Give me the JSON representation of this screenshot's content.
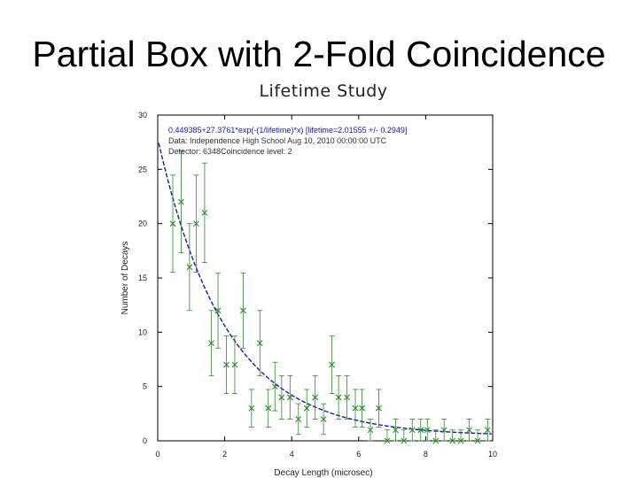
{
  "slide": {
    "title": "Partial Box with 2-Fold Coincidence"
  },
  "chart_data": {
    "type": "scatter",
    "title": "Lifetime Study",
    "xlabel": "Decay Length (microsec)",
    "ylabel": "Number of Decays",
    "xlim": [
      0,
      10
    ],
    "ylim": [
      0,
      30
    ],
    "xticks": [
      0,
      2,
      4,
      6,
      8,
      10
    ],
    "yticks": [
      0,
      5,
      10,
      15,
      20,
      25,
      30
    ],
    "grid": false,
    "annotations": [
      "0.449385+27.3761*exp(-(1/lifetime)*x) [lifetime=2.01555 +/- 0.2949]",
      "Data: Independence High School Aug 10, 2010 00:00:00 UTC",
      "Detector: 6348Coincidence level: 2"
    ],
    "series": [
      {
        "type": "points-with-error-bars",
        "color": "#2e8b2e",
        "points": [
          {
            "x": 0.45,
            "y": 20
          },
          {
            "x": 0.7,
            "y": 22
          },
          {
            "x": 0.95,
            "y": 16
          },
          {
            "x": 1.15,
            "y": 20
          },
          {
            "x": 1.4,
            "y": 21
          },
          {
            "x": 1.6,
            "y": 9
          },
          {
            "x": 1.8,
            "y": 12
          },
          {
            "x": 2.05,
            "y": 7
          },
          {
            "x": 2.3,
            "y": 7
          },
          {
            "x": 2.55,
            "y": 12
          },
          {
            "x": 2.8,
            "y": 3
          },
          {
            "x": 3.05,
            "y": 9
          },
          {
            "x": 3.3,
            "y": 3
          },
          {
            "x": 3.5,
            "y": 5
          },
          {
            "x": 3.7,
            "y": 4
          },
          {
            "x": 3.95,
            "y": 4
          },
          {
            "x": 4.2,
            "y": 2
          },
          {
            "x": 4.45,
            "y": 3
          },
          {
            "x": 4.7,
            "y": 4
          },
          {
            "x": 4.95,
            "y": 2
          },
          {
            "x": 5.2,
            "y": 7
          },
          {
            "x": 5.4,
            "y": 4
          },
          {
            "x": 5.65,
            "y": 4
          },
          {
            "x": 5.9,
            "y": 3
          },
          {
            "x": 6.1,
            "y": 3
          },
          {
            "x": 6.35,
            "y": 1
          },
          {
            "x": 6.6,
            "y": 3
          },
          {
            "x": 6.85,
            "y": 0
          },
          {
            "x": 7.1,
            "y": 1
          },
          {
            "x": 7.35,
            "y": 0
          },
          {
            "x": 7.6,
            "y": 1
          },
          {
            "x": 7.85,
            "y": 1
          },
          {
            "x": 8.05,
            "y": 1
          },
          {
            "x": 8.3,
            "y": 0
          },
          {
            "x": 8.55,
            "y": 1
          },
          {
            "x": 8.8,
            "y": 0
          },
          {
            "x": 9.05,
            "y": 0
          },
          {
            "x": 9.3,
            "y": 1
          },
          {
            "x": 9.55,
            "y": 0
          },
          {
            "x": 9.85,
            "y": 1
          }
        ]
      },
      {
        "type": "fit-curve",
        "color": "#1a1aa8",
        "formula": "0.449385+27.3761*exp(-(1/2.01555)*x)",
        "constant": 0.449385,
        "amplitude": 27.3761,
        "lifetime": 2.01555
      }
    ]
  }
}
